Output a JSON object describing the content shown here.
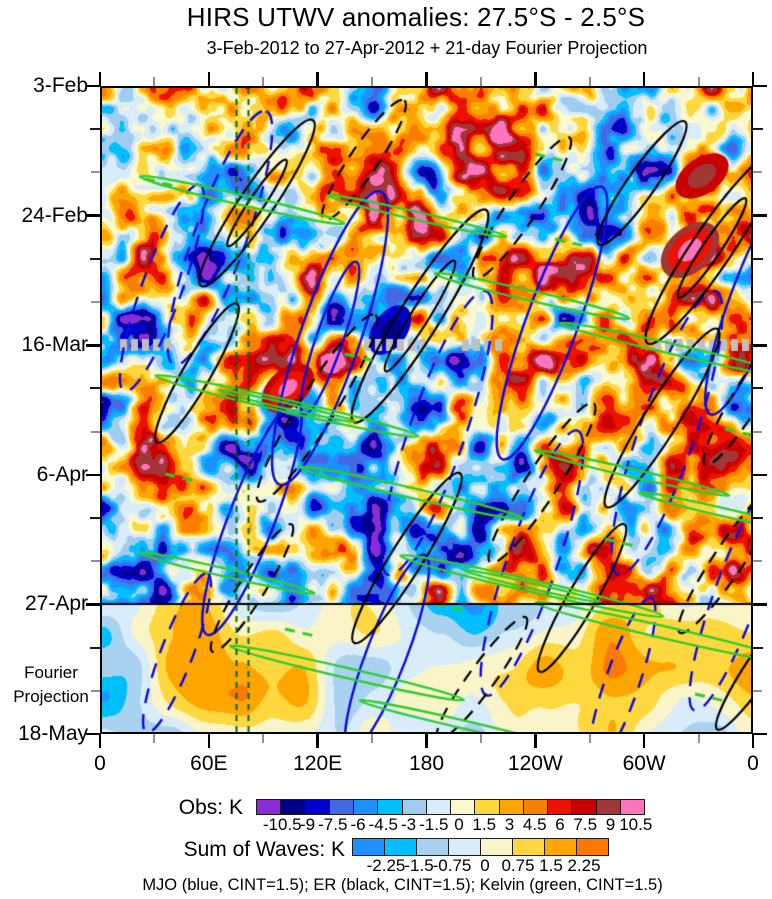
{
  "title": "HIRS UTWV anomalies: 27.5°S - 2.5°S",
  "subtitle": "3-Feb-2012 to 27-Apr-2012 + 21-day Fourier Projection",
  "chart_data": {
    "type": "heatmap",
    "title": "HIRS UTWV anomalies: 27.5°S - 2.5°S",
    "subtitle": "3-Feb-2012 to 27-Apr-2012 + 21-day Fourier Projection",
    "x_axis": {
      "label": "",
      "tick_labels": [
        "0",
        "60E",
        "120E",
        "180",
        "120W",
        "60W",
        "0"
      ],
      "minor_ticks_between_majors": 1,
      "range_degrees_longitude": [
        0,
        360
      ]
    },
    "y_axis": {
      "label": "",
      "tick_labels": [
        "3-Feb",
        "24-Feb",
        "16-Mar",
        "6-Apr",
        "27-Apr",
        "18-May"
      ],
      "minor_ticks_between_majors": 2,
      "direction": "time increases downward",
      "observation_end_label": "27-Apr",
      "projection_end_label": "18-May"
    },
    "annotations": {
      "fourier_label_line1": "Fourier",
      "fourier_label_line2": "Projection",
      "projection_divider_at": "27-Apr"
    },
    "colorbars": [
      {
        "label": "Obs: K",
        "tick_labels": [
          "-10.5",
          "-9",
          "-7.5",
          "-6",
          "-4.5",
          "-3",
          "-1.5",
          "0",
          "1.5",
          "3",
          "4.5",
          "6",
          "7.5",
          "9",
          "10.5"
        ],
        "colors": [
          "#8B2BD6",
          "#00008B",
          "#0000CD",
          "#4169E1",
          "#1E90FF",
          "#00BFFF",
          "#A0CCF0",
          "#D8ECFA",
          "#FBF8CE",
          "#FFD73E",
          "#FFA500",
          "#F97F00",
          "#EE1100",
          "#C80000",
          "#A03636",
          "#FF74BC"
        ]
      },
      {
        "label": "Sum of Waves: K",
        "tick_labels": [
          "-2.25",
          "-1.5",
          "-0.75",
          "0",
          "0.75",
          "1.5",
          "2.25"
        ],
        "colors": [
          "#1E90FF",
          "#00BFFF",
          "#A8D2F0",
          "#D8ECFA",
          "#FAF5C8",
          "#FFD73E",
          "#FFA500",
          "#FB7900"
        ]
      }
    ],
    "contour_sets": [
      {
        "name": "MJO",
        "color_name": "blue",
        "color": "#0A0AE6",
        "cint": 1.5,
        "styles": [
          "solid",
          "dashed"
        ]
      },
      {
        "name": "ER",
        "color_name": "black",
        "color": "#000000",
        "cint": 1.5,
        "styles": [
          "solid",
          "dashed"
        ]
      },
      {
        "name": "Kelvin",
        "color_name": "green",
        "color": "#2ECC2E",
        "cint": 1.5,
        "styles": [
          "solid",
          "dashed"
        ]
      }
    ],
    "caption": "MJO (blue, CINT=1.5); ER (black, CINT=1.5); Kelvin (green, CINT=1.5)"
  }
}
